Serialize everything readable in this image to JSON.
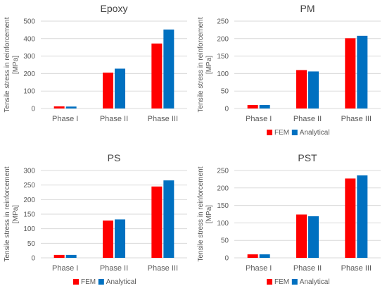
{
  "colors": {
    "fem": "#ff0000",
    "analytical": "#0070c0",
    "grid": "#d9d9d9",
    "text": "#595959",
    "title": "#404040"
  },
  "chart_data": [
    {
      "type": "bar",
      "title": "Epoxy",
      "ylabel": "Tensile stress in reinforcement [MPa]",
      "xlabel": "",
      "categories": [
        "Phase I",
        "Phase II",
        "Phase III"
      ],
      "series": [
        {
          "name": "FEM",
          "values": [
            12,
            205,
            372
          ]
        },
        {
          "name": "Analytical",
          "values": [
            11,
            228,
            452
          ]
        }
      ],
      "ylim": [
        0,
        500
      ],
      "yticks": [
        0,
        100,
        200,
        300,
        400,
        500
      ],
      "grid": true,
      "legend": "none"
    },
    {
      "type": "bar",
      "title": "PM",
      "ylabel": "Tensile stress in reinforcement [MPa]",
      "xlabel": "",
      "categories": [
        "Phase I",
        "Phase II",
        "Phase III"
      ],
      "series": [
        {
          "name": "FEM",
          "values": [
            10,
            110,
            201
          ]
        },
        {
          "name": "Analytical",
          "values": [
            10,
            106,
            208
          ]
        }
      ],
      "ylim": [
        0,
        250
      ],
      "yticks": [
        0,
        50,
        100,
        150,
        200,
        250
      ],
      "grid": true,
      "legend": "bottom"
    },
    {
      "type": "bar",
      "title": "PS",
      "ylabel": "Tensile stress in reinforcement [MPa]",
      "xlabel": "",
      "categories": [
        "Phase I",
        "Phase II",
        "Phase III"
      ],
      "series": [
        {
          "name": "FEM",
          "values": [
            10,
            128,
            245
          ]
        },
        {
          "name": "Analytical",
          "values": [
            10,
            132,
            266
          ]
        }
      ],
      "ylim": [
        0,
        300
      ],
      "yticks": [
        0,
        50,
        100,
        150,
        200,
        250,
        300
      ],
      "grid": true,
      "legend": "bottom"
    },
    {
      "type": "bar",
      "title": "PST",
      "ylabel": "Tensile stress in reinforcement [MPa]",
      "xlabel": "",
      "categories": [
        "Phase I",
        "Phase II",
        "Phase III"
      ],
      "series": [
        {
          "name": "FEM",
          "values": [
            10,
            124,
            227
          ]
        },
        {
          "name": "Analytical",
          "values": [
            10,
            119,
            236
          ]
        }
      ],
      "ylim": [
        0,
        250
      ],
      "yticks": [
        0,
        50,
        100,
        150,
        200,
        250
      ],
      "grid": true,
      "legend": "bottom"
    }
  ]
}
